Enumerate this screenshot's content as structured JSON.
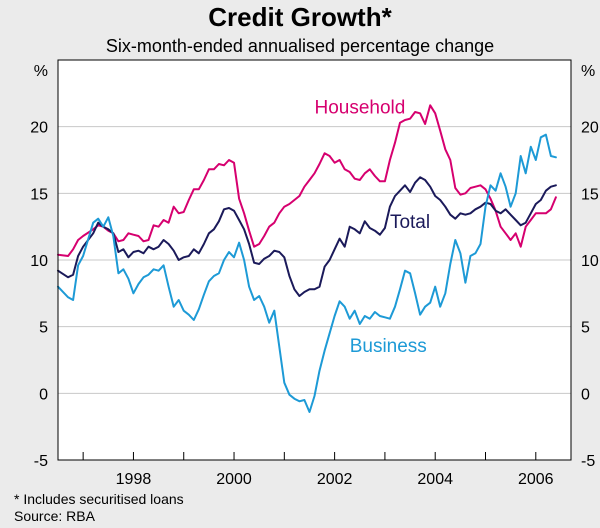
{
  "colors": {
    "household": "#d6006f",
    "total": "#1b1a5a",
    "business": "#1d9ad6",
    "background": "#ebebeb",
    "plot_background": "#ffffff",
    "grid": "#c8c8c8"
  },
  "chart_data": {
    "type": "line",
    "title": "Credit Growth*",
    "subtitle": "Six-month-ended annualised percentage change",
    "ylabel_left": "%",
    "ylabel_right": "%",
    "ylim": [
      -5,
      25
    ],
    "yticks": [
      -5,
      0,
      5,
      10,
      15,
      20
    ],
    "xlim": [
      1996.5,
      2006.7
    ],
    "xticks": [
      1998,
      2000,
      2002,
      2004,
      2006
    ],
    "grid": true,
    "series": [
      {
        "name": "Household",
        "label": "Household",
        "color": "#d6006f",
        "x": [
          1996.5,
          1996.7,
          1996.8,
          1996.9,
          1997.0,
          1997.2,
          1997.3,
          1997.4,
          1997.5,
          1997.6,
          1997.7,
          1997.8,
          1997.9,
          1998.0,
          1998.1,
          1998.2,
          1998.3,
          1998.4,
          1998.5,
          1998.6,
          1998.7,
          1998.8,
          1998.9,
          1999.0,
          1999.1,
          1999.2,
          1999.3,
          1999.4,
          1999.5,
          1999.6,
          1999.7,
          1999.8,
          1999.9,
          2000.0,
          2000.1,
          2000.2,
          2000.3,
          2000.4,
          2000.5,
          2000.6,
          2000.7,
          2000.8,
          2000.9,
          2001.0,
          2001.1,
          2001.2,
          2001.3,
          2001.4,
          2001.5,
          2001.6,
          2001.7,
          2001.8,
          2001.9,
          2002.0,
          2002.1,
          2002.2,
          2002.3,
          2002.4,
          2002.5,
          2002.6,
          2002.7,
          2002.8,
          2002.9,
          2003.0,
          2003.1,
          2003.2,
          2003.3,
          2003.4,
          2003.5,
          2003.6,
          2003.7,
          2003.8,
          2003.9,
          2004.0,
          2004.1,
          2004.2,
          2004.3,
          2004.4,
          2004.5,
          2004.6,
          2004.7,
          2004.8,
          2004.9,
          2005.0,
          2005.1,
          2005.2,
          2005.3,
          2005.4,
          2005.5,
          2005.6,
          2005.7,
          2005.8,
          2005.9,
          2006.0,
          2006.1,
          2006.2,
          2006.3,
          2006.4
        ],
        "values": [
          10.4,
          10.3,
          10.8,
          11.5,
          11.8,
          12.3,
          12.6,
          12.5,
          12.2,
          12.0,
          11.4,
          11.5,
          12.0,
          11.9,
          11.8,
          11.4,
          11.5,
          12.6,
          12.5,
          13.0,
          12.8,
          14.0,
          13.5,
          13.6,
          14.5,
          15.3,
          15.3,
          16.0,
          16.8,
          16.8,
          17.2,
          17.1,
          17.5,
          17.3,
          14.6,
          13.5,
          12.2,
          11.0,
          11.2,
          11.8,
          12.5,
          12.8,
          13.5,
          14.0,
          14.2,
          14.5,
          14.8,
          15.5,
          16.0,
          16.5,
          17.2,
          18.0,
          17.8,
          17.3,
          17.5,
          16.8,
          16.6,
          16.1,
          16.0,
          16.5,
          16.8,
          16.3,
          15.9,
          15.9,
          17.5,
          18.8,
          20.3,
          20.5,
          20.6,
          21.1,
          21.0,
          20.2,
          21.6,
          21.0,
          19.7,
          18.3,
          17.5,
          15.4,
          14.9,
          15.0,
          15.4,
          15.5,
          15.6,
          15.3,
          14.6,
          13.7,
          12.5,
          12.0,
          11.5,
          12.0,
          11.0,
          12.5,
          13.0,
          13.5,
          13.5,
          13.5,
          13.8,
          14.7
        ]
      },
      {
        "name": "Total",
        "label": "Total",
        "color": "#1b1a5a",
        "x": [
          1996.5,
          1996.7,
          1996.8,
          1996.9,
          1997.0,
          1997.2,
          1997.3,
          1997.4,
          1997.5,
          1997.6,
          1997.7,
          1997.8,
          1997.9,
          1998.0,
          1998.1,
          1998.2,
          1998.3,
          1998.4,
          1998.5,
          1998.6,
          1998.7,
          1998.8,
          1998.9,
          1999.0,
          1999.1,
          1999.2,
          1999.3,
          1999.4,
          1999.5,
          1999.6,
          1999.7,
          1999.8,
          1999.9,
          2000.0,
          2000.1,
          2000.2,
          2000.3,
          2000.4,
          2000.5,
          2000.6,
          2000.7,
          2000.8,
          2000.9,
          2001.0,
          2001.1,
          2001.2,
          2001.3,
          2001.4,
          2001.5,
          2001.6,
          2001.7,
          2001.8,
          2001.9,
          2002.0,
          2002.1,
          2002.2,
          2002.3,
          2002.4,
          2002.5,
          2002.6,
          2002.7,
          2002.8,
          2002.9,
          2003.0,
          2003.1,
          2003.2,
          2003.3,
          2003.4,
          2003.5,
          2003.6,
          2003.7,
          2003.8,
          2003.9,
          2004.0,
          2004.1,
          2004.2,
          2004.3,
          2004.4,
          2004.5,
          2004.6,
          2004.7,
          2004.8,
          2004.9,
          2005.0,
          2005.1,
          2005.2,
          2005.3,
          2005.4,
          2005.5,
          2005.6,
          2005.7,
          2005.8,
          2005.9,
          2006.0,
          2006.1,
          2006.2,
          2006.3,
          2006.4
        ],
        "values": [
          9.2,
          8.7,
          8.9,
          10.3,
          11.0,
          12.0,
          12.8,
          12.5,
          12.3,
          12.0,
          10.6,
          10.8,
          10.2,
          10.6,
          10.7,
          10.5,
          11.0,
          10.8,
          11.0,
          11.5,
          11.2,
          10.7,
          10.0,
          10.2,
          10.3,
          10.8,
          10.5,
          11.2,
          12.0,
          12.3,
          12.9,
          13.8,
          13.9,
          13.7,
          13.0,
          12.3,
          11.2,
          9.8,
          9.7,
          10.1,
          10.3,
          10.7,
          10.6,
          10.2,
          8.8,
          7.8,
          7.3,
          7.6,
          7.8,
          7.8,
          8.0,
          9.5,
          10.0,
          10.8,
          11.6,
          11.0,
          12.5,
          12.3,
          12.0,
          12.9,
          12.4,
          12.2,
          11.9,
          12.4,
          14.0,
          14.8,
          15.2,
          15.6,
          15.1,
          15.8,
          16.2,
          16.0,
          15.5,
          14.8,
          14.5,
          14.0,
          13.4,
          13.1,
          13.5,
          13.4,
          13.5,
          13.8,
          14.0,
          14.3,
          14.2,
          13.7,
          13.5,
          13.8,
          13.4,
          13.0,
          12.6,
          12.8,
          13.5,
          14.2,
          14.5,
          15.2,
          15.5,
          15.6
        ]
      },
      {
        "name": "Business",
        "label": "Business",
        "color": "#1d9ad6",
        "x": [
          1996.5,
          1996.7,
          1996.8,
          1996.9,
          1997.0,
          1997.2,
          1997.3,
          1997.4,
          1997.5,
          1997.6,
          1997.7,
          1997.8,
          1997.9,
          1998.0,
          1998.1,
          1998.2,
          1998.3,
          1998.4,
          1998.5,
          1998.6,
          1998.7,
          1998.8,
          1998.9,
          1999.0,
          1999.1,
          1999.2,
          1999.3,
          1999.4,
          1999.5,
          1999.6,
          1999.7,
          1999.8,
          1999.9,
          2000.0,
          2000.1,
          2000.2,
          2000.3,
          2000.4,
          2000.5,
          2000.6,
          2000.7,
          2000.8,
          2000.9,
          2001.0,
          2001.1,
          2001.2,
          2001.3,
          2001.4,
          2001.5,
          2001.6,
          2001.7,
          2001.8,
          2001.9,
          2002.0,
          2002.1,
          2002.2,
          2002.3,
          2002.4,
          2002.5,
          2002.6,
          2002.7,
          2002.8,
          2002.9,
          2003.0,
          2003.1,
          2003.2,
          2003.3,
          2003.4,
          2003.5,
          2003.6,
          2003.7,
          2003.8,
          2003.9,
          2004.0,
          2004.1,
          2004.2,
          2004.3,
          2004.4,
          2004.5,
          2004.6,
          2004.7,
          2004.8,
          2004.9,
          2005.0,
          2005.1,
          2005.2,
          2005.3,
          2005.4,
          2005.5,
          2005.6,
          2005.7,
          2005.8,
          2005.9,
          2006.0,
          2006.1,
          2006.2,
          2006.3,
          2006.4
        ],
        "values": [
          8.0,
          7.2,
          7.0,
          9.6,
          10.3,
          12.8,
          13.1,
          12.5,
          13.2,
          11.8,
          9.0,
          9.3,
          8.6,
          7.5,
          8.2,
          8.7,
          8.9,
          9.3,
          9.2,
          9.6,
          8.0,
          6.5,
          7.0,
          6.2,
          5.9,
          5.5,
          6.3,
          7.4,
          8.4,
          8.8,
          9.0,
          10.0,
          10.6,
          10.2,
          11.3,
          10.0,
          8.0,
          7.0,
          7.3,
          6.5,
          5.3,
          6.2,
          3.5,
          0.8,
          -0.1,
          -0.4,
          -0.6,
          -0.5,
          -1.4,
          -0.2,
          1.7,
          3.2,
          4.5,
          5.8,
          6.9,
          6.5,
          5.6,
          6.2,
          5.2,
          5.8,
          5.6,
          6.1,
          5.8,
          5.7,
          5.6,
          6.5,
          7.8,
          9.2,
          9.0,
          7.5,
          5.9,
          6.5,
          6.8,
          8.0,
          6.5,
          7.5,
          9.7,
          11.5,
          10.5,
          8.3,
          10.3,
          10.5,
          11.2,
          14.0,
          15.6,
          15.2,
          16.5,
          15.5,
          14.0,
          15.0,
          17.8,
          16.5,
          18.5,
          17.5,
          19.2,
          19.4,
          17.8,
          17.7
        ]
      }
    ],
    "annotations": [
      {
        "text": "Household",
        "series": "Household"
      },
      {
        "text": "Total",
        "series": "Total"
      },
      {
        "text": "Business",
        "series": "Business"
      }
    ]
  },
  "footnote": "*   Includes securitised loans",
  "source": "Source: RBA"
}
